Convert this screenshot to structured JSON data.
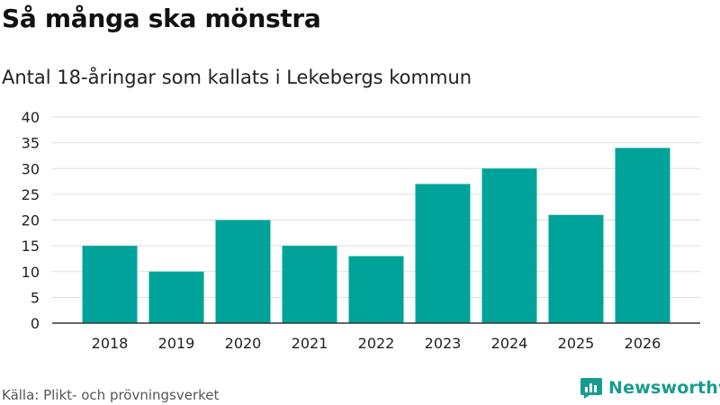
{
  "header": {
    "title": "Så många ska mönstra",
    "subtitle": "Antal 18-åringar som kallats i Lekebergs kommun"
  },
  "footer": {
    "source": "Källa: Plikt- och prövningsverket",
    "brand": "Newsworthy"
  },
  "colors": {
    "bar": "#00a39a",
    "grid": "#dddddd",
    "axis": "#333333",
    "brand": "#179b91"
  },
  "icons": {
    "brand_logo": "newsworthy-logo-icon"
  },
  "chart_data": {
    "type": "bar",
    "title": "Så många ska mönstra",
    "subtitle": "Antal 18-åringar som kallats i Lekebergs kommun",
    "categories": [
      "2018",
      "2019",
      "2020",
      "2021",
      "2022",
      "2023",
      "2024",
      "2025",
      "2026"
    ],
    "values": [
      15,
      10,
      20,
      15,
      13,
      27,
      30,
      21,
      34
    ],
    "xlabel": "",
    "ylabel": "",
    "ylim": [
      0,
      40
    ],
    "yticks": [
      0,
      5,
      10,
      15,
      20,
      25,
      30,
      35,
      40
    ],
    "grid": true,
    "legend": "none"
  }
}
